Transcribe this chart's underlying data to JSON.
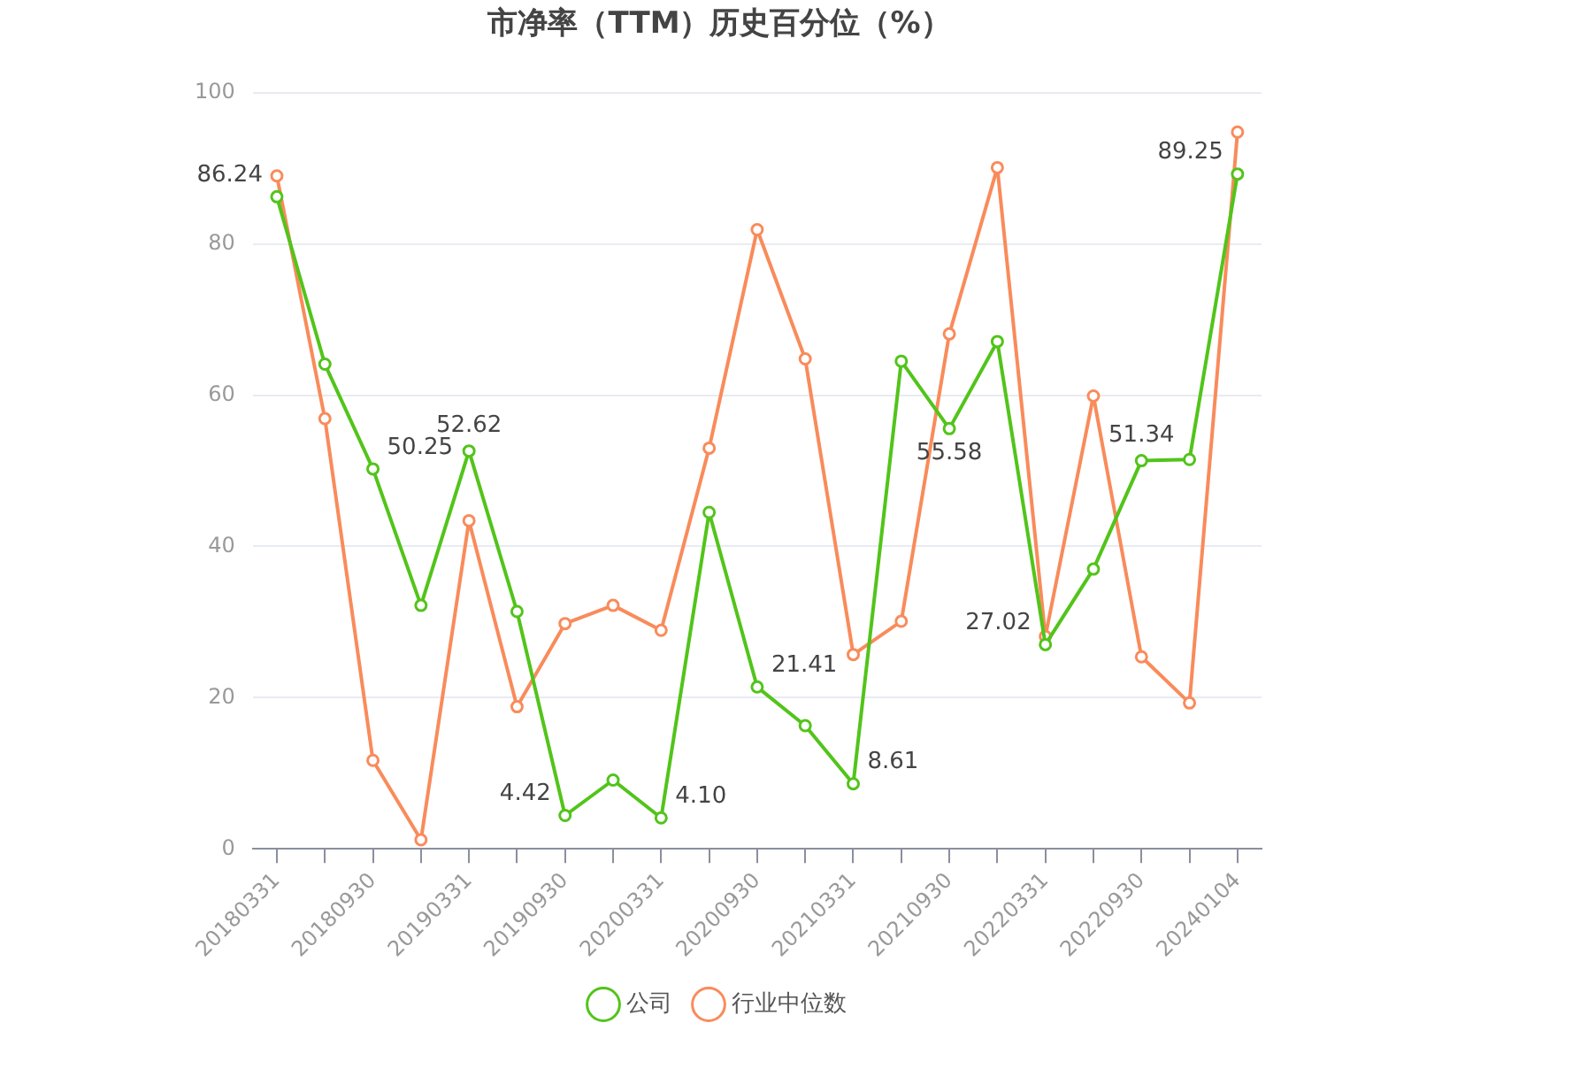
{
  "chart_data": {
    "type": "line",
    "title": "市净率（TTM）历史百分位（%）",
    "categories": [
      "20180331",
      null,
      "20180930",
      null,
      "20190331",
      null,
      "20190930",
      null,
      "20200331",
      null,
      "20200930",
      null,
      "20210331",
      null,
      "20210930",
      null,
      "20220331",
      null,
      "20220930",
      null,
      "20240104"
    ],
    "series": [
      {
        "name": "公司",
        "color": "#52c41a",
        "values": [
          86.24,
          64.1,
          50.25,
          32.2,
          52.62,
          31.4,
          4.42,
          9.1,
          4.1,
          44.5,
          21.41,
          16.3,
          8.61,
          64.5,
          55.58,
          67.1,
          27.02,
          37.0,
          51.34,
          51.5,
          89.25
        ],
        "value_labels": [
          "86.24",
          null,
          "50.25",
          null,
          "52.62",
          null,
          "4.42",
          null,
          "4.10",
          null,
          "21.41",
          null,
          "8.61",
          null,
          "55.58",
          null,
          "27.02",
          null,
          "51.34",
          null,
          "89.25"
        ]
      },
      {
        "name": "行业中位数",
        "color": "#f98b5b",
        "values": [
          89.0,
          56.9,
          11.7,
          1.2,
          43.4,
          18.8,
          29.8,
          32.2,
          28.9,
          53.0,
          81.9,
          64.8,
          25.7,
          30.1,
          68.1,
          90.1,
          28.1,
          59.9,
          25.4,
          19.3,
          94.8
        ]
      }
    ],
    "ylim": [
      0,
      100
    ],
    "yticks": [
      0,
      20,
      40,
      60,
      80,
      100
    ],
    "grid": "y",
    "legend": "bottom",
    "marker": "circle",
    "line_style": "solid"
  }
}
